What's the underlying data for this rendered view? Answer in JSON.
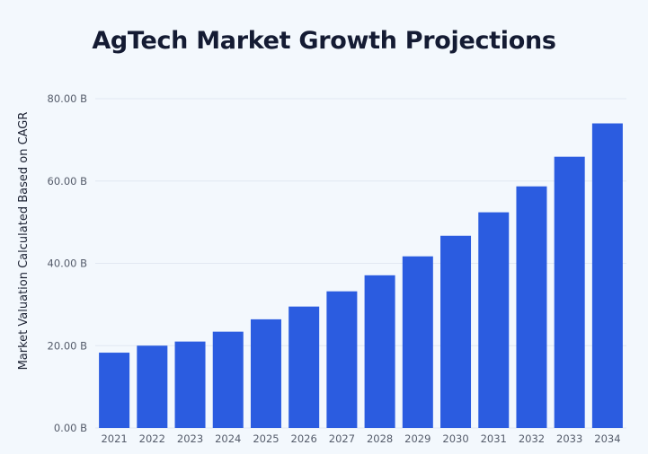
{
  "chart_data": {
    "type": "bar",
    "title": "AgTech Market Growth Projections",
    "xlabel": "",
    "ylabel": "Market Valuation Calculated Based on CAGR",
    "categories": [
      "2021",
      "2022",
      "2023",
      "2024",
      "2025",
      "2026",
      "2027",
      "2028",
      "2029",
      "2030",
      "2031",
      "2032",
      "2033",
      "2034"
    ],
    "values": [
      18.3,
      20.0,
      21.0,
      23.4,
      26.4,
      29.5,
      33.2,
      37.1,
      41.7,
      46.7,
      52.4,
      58.7,
      65.9,
      74.0
    ],
    "ylim": [
      0,
      80
    ],
    "yticks": [
      "0.00 B",
      "20.00 B",
      "40.00 B",
      "60.00 B",
      "80.00 B"
    ],
    "ytick_values": [
      0,
      20,
      40,
      60,
      80
    ],
    "grid": true,
    "legend": "none",
    "bar_color": "#2b5ce0"
  }
}
